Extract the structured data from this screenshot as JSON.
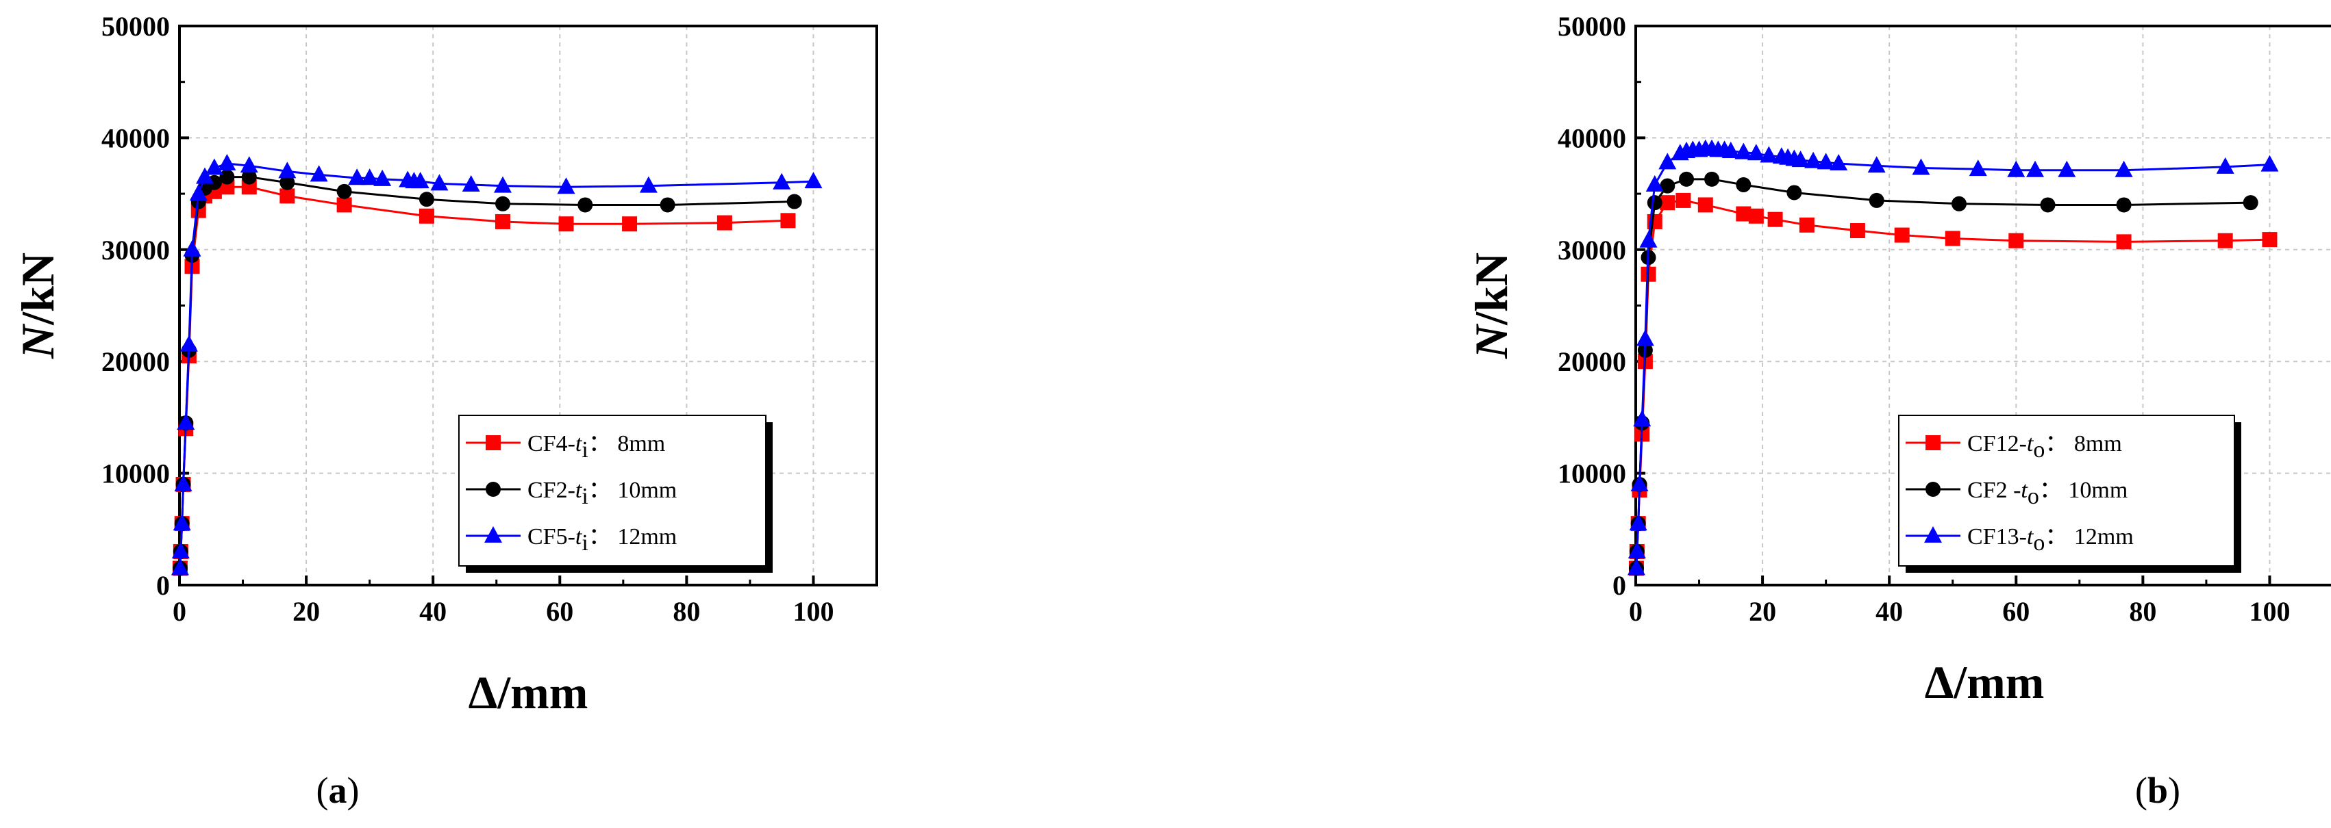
{
  "chart_data": [
    {
      "type": "line",
      "panel_label": {
        "open": "(",
        "letter": "a",
        "close": ")"
      },
      "xlabel": "Δ/mm",
      "ylabel": {
        "italic": "N",
        "rest": "/kN"
      },
      "xlim": [
        0,
        110
      ],
      "ylim": [
        0,
        50000
      ],
      "xticks": [
        "0",
        "20",
        "40",
        "60",
        "80",
        "100"
      ],
      "yticks": [
        "0",
        "10000",
        "20000",
        "30000",
        "40000",
        "50000"
      ],
      "grid": true,
      "legend_position": "bottom-right",
      "series": [
        {
          "legend": {
            "prefix": "CF4-",
            "var": "t",
            "sub": "i",
            "suffix": "：  8mm"
          },
          "color": "#ff0000",
          "marker": "square",
          "x": [
            0.1,
            0.2,
            0.4,
            0.6,
            1.0,
            1.5,
            2.0,
            3.0,
            4.0,
            5.5,
            7.5,
            11.0,
            17.0,
            26.0,
            39.0,
            51.0,
            61.0,
            71.0,
            86.0,
            96.0
          ],
          "y": [
            1500,
            3000,
            5500,
            9000,
            14000,
            20500,
            28500,
            33500,
            34800,
            35200,
            35600,
            35600,
            34800,
            34000,
            33000,
            32500,
            32300,
            32300,
            32400,
            32600
          ]
        },
        {
          "legend": {
            "prefix": "CF2-",
            "var": "t",
            "sub": "i",
            "suffix": "：  10mm"
          },
          "color": "#000000",
          "marker": "circle",
          "x": [
            0.1,
            0.2,
            0.4,
            0.6,
            1.0,
            1.5,
            2.0,
            3.0,
            4.0,
            5.5,
            7.5,
            11.0,
            17.0,
            26.0,
            39.0,
            51.0,
            64.0,
            77.0,
            97.0
          ],
          "y": [
            1500,
            3000,
            5500,
            9000,
            14500,
            21000,
            29500,
            34300,
            35500,
            36000,
            36500,
            36500,
            36000,
            35200,
            34500,
            34100,
            34000,
            34000,
            34300
          ]
        },
        {
          "legend": {
            "prefix": "CF5-",
            "var": "t",
            "sub": "i",
            "suffix": "：  12mm"
          },
          "color": "#0000ff",
          "marker": "triangle",
          "x": [
            0.1,
            0.2,
            0.4,
            0.6,
            1.0,
            1.5,
            2.0,
            3.0,
            4.0,
            5.5,
            7.5,
            11.0,
            17.0,
            22.0,
            28.0,
            30.0,
            32.0,
            36.0,
            37.0,
            38.0,
            41.0,
            46.0,
            51.0,
            61.0,
            74.0,
            95.0,
            100.0
          ],
          "y": [
            1500,
            3000,
            5500,
            9000,
            14500,
            21500,
            30000,
            35000,
            36500,
            37300,
            37700,
            37500,
            37000,
            36700,
            36400,
            36400,
            36300,
            36200,
            36100,
            36100,
            35900,
            35800,
            35700,
            35600,
            35700,
            36000,
            36100
          ]
        }
      ]
    },
    {
      "type": "line",
      "panel_label": {
        "open": "(",
        "letter": "b",
        "close": ")"
      },
      "xlabel": "Δ/mm",
      "ylabel": {
        "italic": "N",
        "rest": "/kN"
      },
      "xlim": [
        0,
        110
      ],
      "ylim": [
        0,
        50000
      ],
      "xticks": [
        "0",
        "20",
        "40",
        "60",
        "80",
        "100"
      ],
      "yticks": [
        "0",
        "10000",
        "20000",
        "30000",
        "40000",
        "50000"
      ],
      "grid": true,
      "legend_position": "bottom-right",
      "series": [
        {
          "legend": {
            "prefix": "CF12-",
            "var": "t",
            "sub": "o",
            "suffix": "：  8mm"
          },
          "color": "#ff0000",
          "marker": "square",
          "x": [
            0.1,
            0.2,
            0.4,
            0.6,
            1.0,
            1.5,
            2.0,
            3.0,
            5.0,
            7.5,
            11.0,
            17.0,
            19.0,
            22.0,
            27.0,
            35.0,
            42.0,
            50.0,
            60.0,
            77.0,
            93.0,
            100.0
          ],
          "y": [
            1500,
            3000,
            5500,
            8500,
            13500,
            20000,
            27800,
            32500,
            34200,
            34400,
            34000,
            33200,
            33000,
            32700,
            32200,
            31700,
            31300,
            31000,
            30800,
            30700,
            30800,
            30900
          ]
        },
        {
          "legend": {
            "prefix": "CF2",
            "var": "  -t",
            "sub": "o",
            "suffix": "：  10mm"
          },
          "color": "#000000",
          "marker": "circle",
          "x": [
            0.1,
            0.2,
            0.4,
            0.6,
            1.0,
            1.5,
            2.0,
            3.0,
            5.0,
            8.0,
            12.0,
            17.0,
            25.0,
            38.0,
            51.0,
            65.0,
            77.0,
            97.0
          ],
          "y": [
            1500,
            3000,
            5500,
            9000,
            14500,
            21000,
            29300,
            34200,
            35700,
            36300,
            36300,
            35800,
            35100,
            34400,
            34100,
            34000,
            34000,
            34200
          ]
        },
        {
          "legend": {
            "prefix": "CF13-",
            "var": "t",
            "sub": "o",
            "suffix": "：  12mm"
          },
          "color": "#0000ff",
          "marker": "triangle",
          "x": [
            0.1,
            0.2,
            0.4,
            0.6,
            1.0,
            1.5,
            2.0,
            3.0,
            5.0,
            7.0,
            8.0,
            9.0,
            10.0,
            11.0,
            12.0,
            13.0,
            14.0,
            15.0,
            17.0,
            19.0,
            21.0,
            23.0,
            24.0,
            25.0,
            26.0,
            28.0,
            30.0,
            32.0,
            38.0,
            45.0,
            54.0,
            60.0,
            63.0,
            68.0,
            77.0,
            93.0,
            100.0
          ],
          "y": [
            1500,
            3000,
            5500,
            9000,
            14800,
            22000,
            30800,
            35800,
            37800,
            38600,
            38800,
            38900,
            38900,
            39000,
            39000,
            38900,
            38900,
            38800,
            38700,
            38600,
            38400,
            38300,
            38200,
            38100,
            38000,
            37900,
            37800,
            37700,
            37500,
            37300,
            37200,
            37100,
            37100,
            37100,
            37100,
            37400,
            37600
          ]
        }
      ]
    }
  ]
}
